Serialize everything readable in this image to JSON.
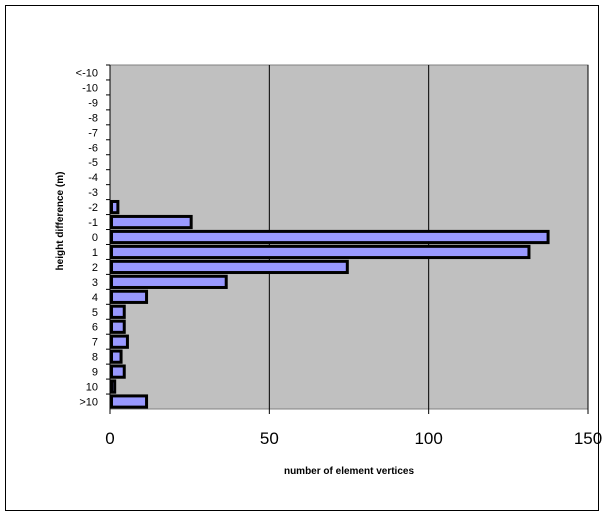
{
  "chart_data": {
    "type": "bar",
    "orientation": "horizontal",
    "title": "",
    "xlabel": "number of element vertices",
    "ylabel": "height difference (m)",
    "xlim": [
      0,
      150
    ],
    "xticks": [
      0,
      50,
      100,
      150
    ],
    "grid": true,
    "legend": "none",
    "categories": [
      "<-10",
      "-10",
      "-9",
      "-8",
      "-7",
      "-6",
      "-5",
      "-4",
      "-3",
      "-2",
      "-1",
      "0",
      "1",
      "2",
      "3",
      "4",
      "5",
      "6",
      "7",
      "8",
      "9",
      "10",
      ">10"
    ],
    "values": [
      0,
      0,
      0,
      0,
      0,
      0,
      0,
      0,
      0,
      2,
      25,
      137,
      131,
      74,
      36,
      11,
      4,
      4,
      5,
      3,
      4,
      1,
      11
    ],
    "colors": {
      "plot_background": "#c0c0c0",
      "bar_fill": "#9999ff",
      "bar_edge": "#000000",
      "grid": "#000000"
    }
  }
}
